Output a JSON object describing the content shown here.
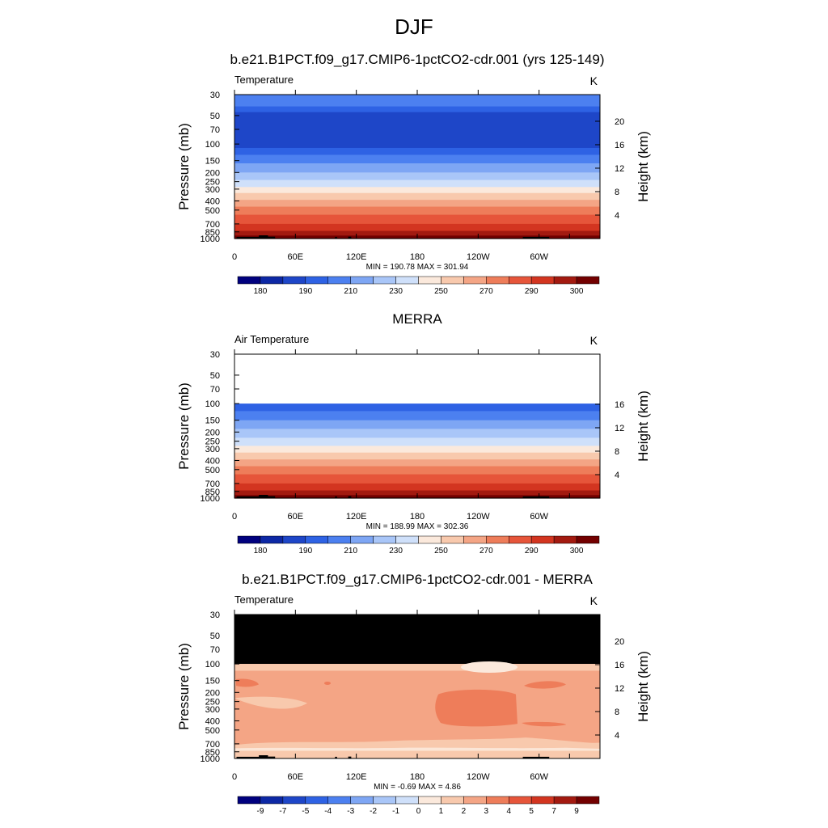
{
  "figure": {
    "title": "DJF"
  },
  "palette": [
    "#00007e",
    "#0d28a5",
    "#1e46c8",
    "#2e62e4",
    "#4c80f0",
    "#7ea6f4",
    "#a9c6f8",
    "#cfe0fa",
    "#fbe9dc",
    "#f8c9ad",
    "#f4a585",
    "#ee7d5a",
    "#e6553a",
    "#d33520",
    "#a31a10",
    "#730000"
  ],
  "chart_data": [
    {
      "type": "contour",
      "id": "model",
      "title": "b.e21.B1PCT.f09_g17.CMIP6-1pctCO2-cdr.001 (yrs 125-149)",
      "left_label": "Temperature",
      "right_label": "K",
      "ylabel": "Pressure (mb)",
      "ylabel_right": "Height (km)",
      "y_ticks": [
        "30",
        "50",
        "70",
        "100",
        "150",
        "200",
        "250",
        "300",
        "400",
        "500",
        "700",
        "850",
        "1000"
      ],
      "height_ticks": [
        "20",
        "16",
        "12",
        "8",
        "4"
      ],
      "x_ticks": [
        "0",
        "60E",
        "120E",
        "180",
        "120W",
        "60W"
      ],
      "stats": "MIN = 190.78  MAX = 301.94",
      "colorbar_labels": [
        "180",
        "190",
        "210",
        "230",
        "250",
        "270",
        "290",
        "300"
      ],
      "ylim_mb": [
        1000,
        30
      ]
    },
    {
      "type": "contour",
      "id": "obs",
      "title": "MERRA",
      "left_label": "Air Temperature",
      "right_label": "K",
      "ylabel": "Pressure (mb)",
      "ylabel_right": "Height (km)",
      "y_ticks": [
        "30",
        "50",
        "70",
        "100",
        "150",
        "200",
        "250",
        "300",
        "400",
        "500",
        "700",
        "850",
        "1000"
      ],
      "height_ticks": [
        "16",
        "12",
        "8",
        "4"
      ],
      "x_ticks": [
        "0",
        "60E",
        "120E",
        "180",
        "120W",
        "60W"
      ],
      "stats": "MIN = 188.99  MAX = 302.36",
      "colorbar_labels": [
        "180",
        "190",
        "210",
        "230",
        "250",
        "270",
        "290",
        "300"
      ],
      "ylim_mb": [
        1000,
        30
      ]
    },
    {
      "type": "contour",
      "id": "diff",
      "title": "b.e21.B1PCT.f09_g17.CMIP6-1pctCO2-cdr.001 - MERRA",
      "left_label": "Temperature",
      "right_label": "K",
      "ylabel": "Pressure (mb)",
      "ylabel_right": "Height (km)",
      "y_ticks": [
        "30",
        "50",
        "70",
        "100",
        "150",
        "200",
        "250",
        "300",
        "400",
        "500",
        "700",
        "850",
        "1000"
      ],
      "height_ticks": [
        "20",
        "16",
        "12",
        "8",
        "4"
      ],
      "x_ticks": [
        "0",
        "60E",
        "120E",
        "180",
        "120W",
        "60W"
      ],
      "stats": "MIN =  -0.69  MAX =   4.86",
      "colorbar_labels": [
        "-9",
        "-7",
        "-5",
        "-4",
        "-3",
        "-2",
        "-1",
        "0",
        "1",
        "2",
        "3",
        "4",
        "5",
        "7",
        "9"
      ],
      "ylim_mb": [
        1000,
        30
      ]
    }
  ]
}
